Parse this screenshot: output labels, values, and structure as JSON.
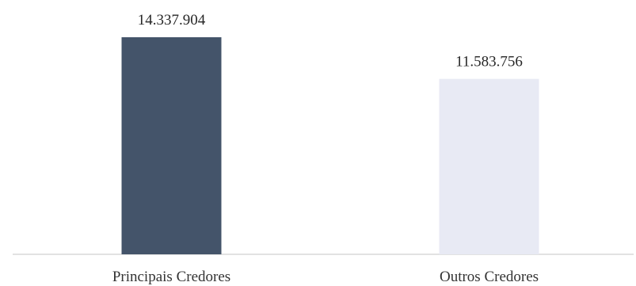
{
  "chart_data": {
    "type": "bar",
    "categories": [
      "Principais Credores",
      "Outros Credores"
    ],
    "values": [
      14337904,
      11583756
    ],
    "data_labels": [
      "14.337.904",
      "11.583.756"
    ],
    "ylim": [
      0,
      14337904
    ],
    "grid": false,
    "legend": "none"
  },
  "colors": {
    "bars": [
      "#44546a",
      "#e8eaf4"
    ],
    "baseline": "#d9d9d9"
  }
}
